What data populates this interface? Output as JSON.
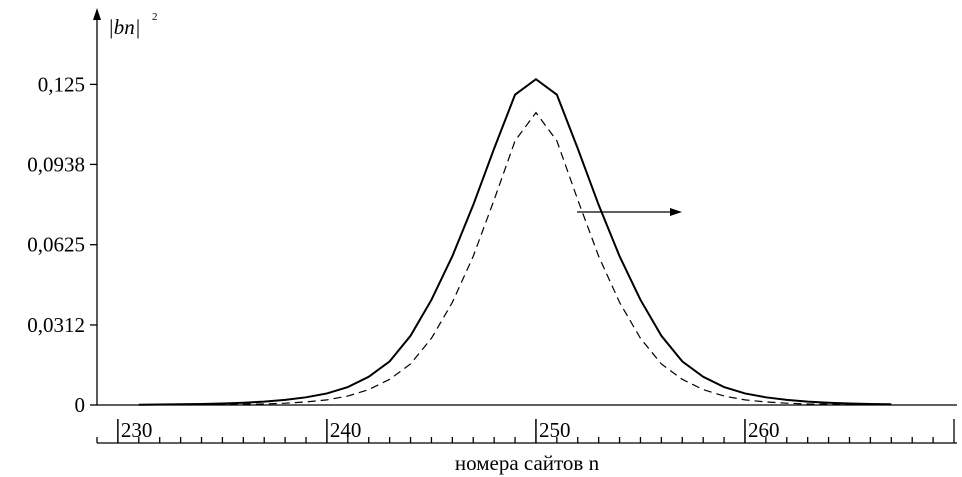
{
  "chart_data": {
    "type": "line",
    "y_label": "|bn|",
    "y_label_exponent": "2",
    "x_label": "номера сайтов n",
    "x": [
      231,
      232,
      233,
      234,
      235,
      236,
      237,
      238,
      239,
      240,
      241,
      242,
      243,
      244,
      245,
      246,
      247,
      248,
      249,
      250,
      251,
      252,
      253,
      254,
      255,
      256,
      257,
      258,
      259,
      260,
      261,
      262,
      263,
      264,
      265,
      266,
      267
    ],
    "series": [
      {
        "style": "solid",
        "color": "#000000",
        "values": [
          0.0001,
          0.0002,
          0.0003,
          0.0004,
          0.0006,
          0.0009,
          0.0013,
          0.002,
          0.003,
          0.0045,
          0.007,
          0.011,
          0.017,
          0.027,
          0.041,
          0.058,
          0.078,
          0.1,
          0.121,
          0.127,
          0.121,
          0.1,
          0.078,
          0.058,
          0.041,
          0.027,
          0.017,
          0.011,
          0.007,
          0.0045,
          0.003,
          0.002,
          0.0013,
          0.0009,
          0.0006,
          0.0004,
          0.0003
        ]
      },
      {
        "style": "dashed",
        "color": "#000000",
        "values": [
          0.0001,
          0.0001,
          0.0001,
          0.0001,
          0.0002,
          0.0003,
          0.0004,
          0.0007,
          0.0012,
          0.002,
          0.0035,
          0.006,
          0.01,
          0.016,
          0.026,
          0.04,
          0.058,
          0.08,
          0.103,
          0.114,
          0.103,
          0.08,
          0.058,
          0.04,
          0.026,
          0.016,
          0.01,
          0.006,
          0.0035,
          0.002,
          0.0012,
          0.0007,
          0.0004,
          0.0003,
          0.0002,
          0.0001,
          0.0001
        ]
      }
    ],
    "xlim": [
      229,
      270
    ],
    "xticks": [
      230,
      240,
      250,
      260
    ],
    "ylim": [
      0,
      0.154
    ],
    "yticks": [
      0,
      {
        "value": 0.0312,
        "label": "0,0312"
      },
      {
        "value": 0.0625,
        "label": "0,0625"
      },
      {
        "value": 0.0938,
        "label": "0,0938"
      },
      {
        "value": 0.125,
        "label": "0,125"
      }
    ]
  }
}
